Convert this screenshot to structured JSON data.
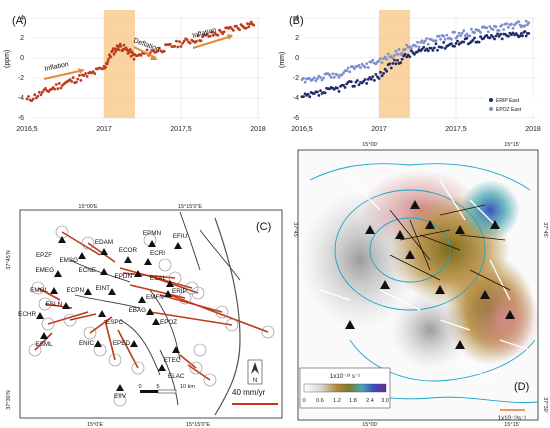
{
  "figure": {
    "panel_a": {
      "label": "(A)",
      "chart_data": {
        "type": "scatter",
        "ylabel": "(ppm)",
        "ylim": [
          -6,
          4
        ],
        "xlim": [
          2016.5,
          2018
        ],
        "y_ticks": [
          "4",
          "2",
          "0",
          "-2",
          "-4",
          "-6"
        ],
        "x_ticks": [
          "2016,5",
          "2017",
          "2017,5",
          "2018"
        ],
        "shaded_interval": [
          2017.0,
          2017.2
        ],
        "annotations": [
          "Inflation",
          "Deflation",
          "Inflation"
        ],
        "series": [
          {
            "color": "#c0391b",
            "x": [
              2016.5,
              2016.6,
              2016.7,
              2016.8,
              2016.9,
              2017.0,
              2017.05,
              2017.1,
              2017.15,
              2017.2,
              2017.3,
              2017.4,
              2017.5,
              2017.6,
              2017.7,
              2017.8,
              2017.9,
              2017.98
            ],
            "y": [
              -4.2,
              -3.5,
              -2.8,
              -2.2,
              -1.7,
              -1.0,
              0.5,
              1.2,
              0.8,
              0.1,
              0.6,
              1.0,
              1.5,
              1.9,
              2.3,
              2.8,
              3.2,
              3.5
            ]
          }
        ]
      }
    },
    "panel_b": {
      "label": "(B)",
      "chart_data": {
        "type": "scatter",
        "ylabel": "(mm)",
        "ylim": [
          -6,
          4
        ],
        "xlim": [
          2016.5,
          2018
        ],
        "y_ticks": [
          "4",
          "2",
          "0",
          "-2",
          "-4",
          "-6"
        ],
        "x_ticks": [
          "2016,5",
          "2017",
          "2017,5",
          "2018"
        ],
        "shaded_interval": [
          2017.0,
          2017.2
        ],
        "legend": [
          "ERIP East",
          "EPOZ East"
        ],
        "series": [
          {
            "name": "ERIP East",
            "color": "#1f2a6b",
            "x": [
              2016.5,
              2016.6,
              2016.7,
              2016.8,
              2016.9,
              2017.0,
              2017.1,
              2017.2,
              2017.3,
              2017.4,
              2017.5,
              2017.6,
              2017.7,
              2017.8,
              2017.9,
              2017.98
            ],
            "y": [
              -4.0,
              -3.6,
              -3.2,
              -2.7,
              -2.3,
              -1.8,
              -0.5,
              0.4,
              0.8,
              1.2,
              1.5,
              1.8,
              2.0,
              2.2,
              2.4,
              2.6
            ]
          },
          {
            "name": "EPOZ East",
            "color": "#7a8fcc",
            "x": [
              2016.5,
              2016.6,
              2016.7,
              2016.8,
              2016.9,
              2017.0,
              2017.1,
              2017.2,
              2017.3,
              2017.4,
              2017.5,
              2017.6,
              2017.7,
              2017.8,
              2017.9,
              2017.98
            ],
            "y": [
              -2.2,
              -2.0,
              -1.8,
              -1.3,
              -0.8,
              -0.3,
              0.4,
              1.1,
              1.6,
              2.0,
              2.3,
              2.6,
              2.9,
              3.1,
              3.3,
              3.6
            ]
          }
        ]
      }
    },
    "panel_c": {
      "label": "(C)",
      "lon_labels": [
        "15°00'E",
        "15°15'0\"E"
      ],
      "lat_labels": [
        "37°45'N",
        "37°30'N"
      ],
      "bottom_lon_labels": [
        "15°0'E",
        "15°15'0\"E"
      ],
      "stations": [
        "EPMN",
        "EDAM",
        "EPZF",
        "EMSG",
        "ECOR",
        "ECRI",
        "EFIU",
        "EMEG",
        "ECNE",
        "EPDN",
        "ESAL",
        "EMGL",
        "ECPN",
        "EINT",
        "ERIP",
        "EMFN",
        "ESLN",
        "EBAG",
        "ESPC",
        "ECHR",
        "EPOZ",
        "ESML",
        "ENIC",
        "EPED",
        "ETEC",
        "ELAC",
        "EIIV"
      ],
      "scale_bar": {
        "ticks": [
          "0",
          "5",
          "10 km"
        ]
      },
      "compass_letter": "N",
      "velocity_scale": "40 mm/yr"
    },
    "panel_d": {
      "label": "(D)",
      "top_labels": [
        "15°00'",
        "15°15'"
      ],
      "bottom_labels": [
        "15°00'",
        "15°15'"
      ],
      "left_lat_label": "37°45'",
      "right_lat_labels": [
        "37°45'",
        "37°30'"
      ],
      "colorbar": {
        "title": "1x10⁻¹³ s⁻¹",
        "ticks": [
          "0",
          "0.6",
          "1.2",
          "1.8",
          "2.4",
          "3.0"
        ],
        "colors": [
          "#ffffff",
          "#d9d9d9",
          "#b58a3a",
          "#7a7a2a",
          "#4aa6b3",
          "#3a4fc0",
          "#6e2a8a"
        ]
      },
      "strain_scale": "1x10⁻¹³s⁻¹"
    }
  }
}
